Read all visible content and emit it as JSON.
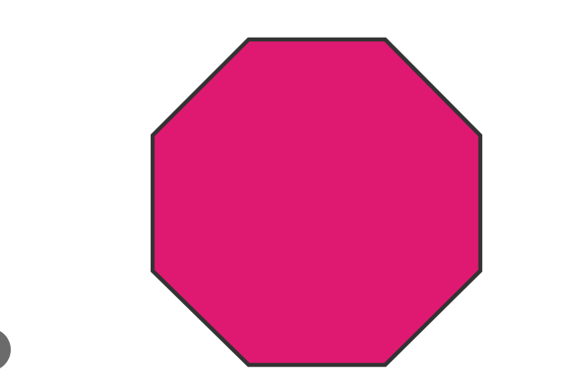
{
  "figure": {
    "shape": "octagon",
    "fill_color": "#df1972",
    "stroke_color": "#333333"
  },
  "corner_button": {
    "icon": "circle-button-icon",
    "color": "#6b6b6b"
  }
}
